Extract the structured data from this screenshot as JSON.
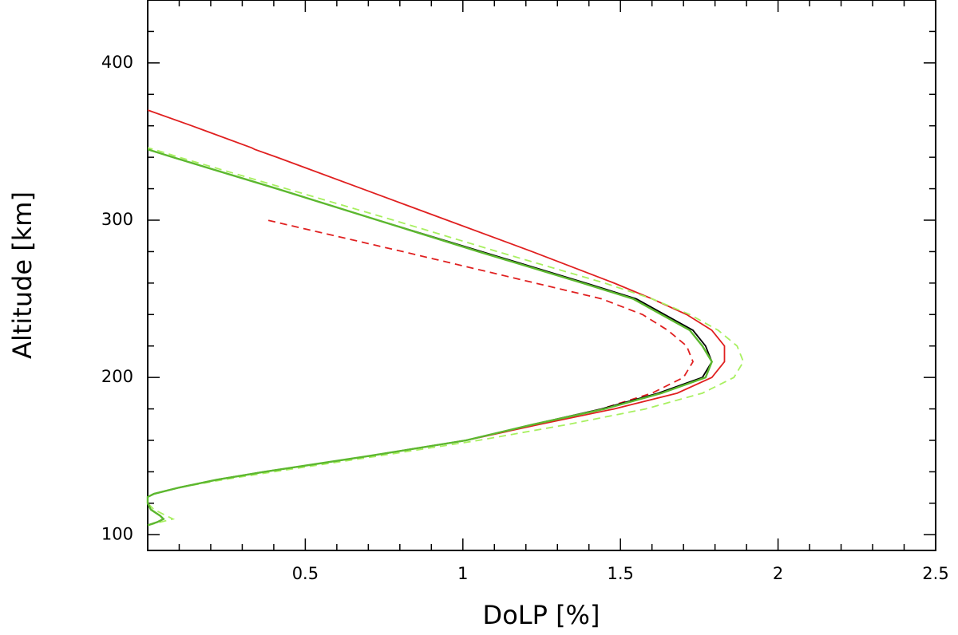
{
  "chart_data": {
    "type": "line",
    "xlabel": "DoLP [%]",
    "ylabel": "Altitude [km]",
    "xlim": [
      0,
      2.5
    ],
    "xticks": [
      0.5,
      1,
      1.5,
      2,
      2.5
    ],
    "xminorticks": [
      0.1,
      0.2,
      0.3,
      0.4,
      0.6,
      0.7,
      0.8,
      0.9,
      1.1,
      1.2,
      1.3,
      1.4,
      1.6,
      1.7,
      1.8,
      1.9,
      2.1,
      2.2,
      2.3,
      2.4
    ],
    "ylim": [
      90,
      440
    ],
    "yticks": [
      100,
      200,
      300,
      400
    ],
    "yminorticks": [
      120,
      140,
      160,
      180,
      220,
      240,
      260,
      280,
      320,
      340,
      360,
      380,
      420,
      440
    ],
    "y": [
      106,
      108,
      110,
      112,
      116,
      120,
      124,
      126,
      130,
      135,
      140,
      150,
      160,
      170,
      180,
      190,
      200,
      210,
      220,
      230,
      240,
      250,
      260,
      280,
      300,
      320,
      340,
      345,
      346,
      360,
      370
    ],
    "series": [
      {
        "color": "#e02020",
        "dash": false,
        "values": [
          0,
          0.03,
          0.05,
          0.04,
          0.01,
          0,
          0,
          0.02,
          0.1,
          0.22,
          0.37,
          0.7,
          1.01,
          1.24,
          1.48,
          1.68,
          1.79,
          1.83,
          1.83,
          1.79,
          1.71,
          1.6,
          1.48,
          1.22,
          0.95,
          0.68,
          0.41,
          0.34,
          0.33,
          0.14,
          0
        ]
      },
      {
        "color": "#e02020",
        "dash": true,
        "values": [
          0,
          0.03,
          0.05,
          0.04,
          0.01,
          0,
          0,
          0.02,
          0.1,
          0.22,
          0.37,
          0.7,
          1.01,
          1.23,
          1.44,
          1.6,
          1.7,
          1.73,
          1.71,
          1.65,
          1.57,
          1.44,
          1.23,
          0.81,
          0.38,
          null,
          null,
          null,
          null,
          null,
          null
        ]
      },
      {
        "color": "#a8f060",
        "dash": true,
        "values": [
          0,
          0.04,
          0.08,
          0.06,
          0.02,
          0,
          0,
          0.02,
          0.1,
          0.24,
          0.4,
          0.73,
          1.05,
          1.33,
          1.58,
          1.76,
          1.86,
          1.89,
          1.87,
          1.81,
          1.72,
          1.6,
          1.45,
          1.11,
          0.78,
          0.44,
          0.1,
          0.02,
          0,
          null,
          null
        ]
      },
      {
        "color": "#000000",
        "dash": false,
        "values": [
          0,
          0.03,
          0.05,
          0.04,
          0.01,
          0,
          0,
          0.02,
          0.1,
          0.22,
          0.37,
          0.7,
          1.01,
          1.22,
          1.44,
          1.62,
          1.76,
          1.79,
          1.77,
          1.73,
          1.64,
          1.55,
          1.39,
          1.06,
          0.73,
          0.41,
          0.08,
          0,
          null,
          null,
          null
        ]
      },
      {
        "color": "#5cb82f",
        "dash": false,
        "values": [
          0,
          0.03,
          0.05,
          0.04,
          0.01,
          0,
          0,
          0.02,
          0.1,
          0.22,
          0.37,
          0.7,
          1.01,
          1.22,
          1.45,
          1.63,
          1.77,
          1.79,
          1.76,
          1.72,
          1.63,
          1.54,
          1.38,
          1.05,
          0.73,
          0.41,
          0.08,
          0,
          null,
          null,
          null
        ]
      }
    ]
  }
}
